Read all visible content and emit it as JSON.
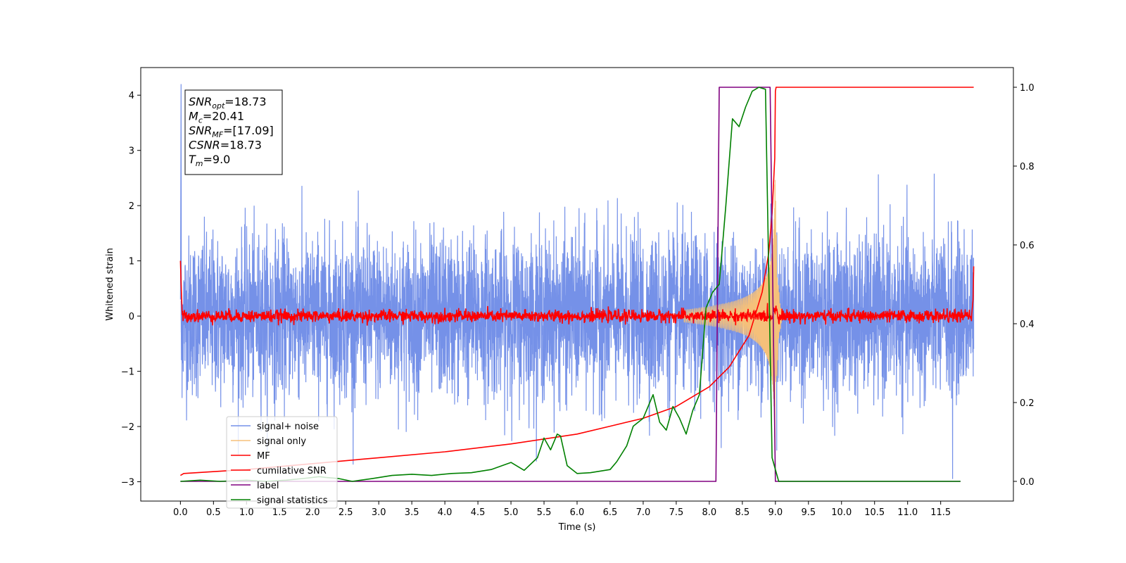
{
  "chart_data": {
    "type": "line",
    "xlabel": "Time (s)",
    "ylabel": "Whitened strain",
    "x_range": [
      -0.6,
      12.6
    ],
    "x_ticks": [
      "0.0",
      "0.5",
      "1.0",
      "1.5",
      "2.0",
      "2.5",
      "3.0",
      "3.5",
      "4.0",
      "4.5",
      "5.0",
      "5.5",
      "6.0",
      "6.5",
      "7.0",
      "7.5",
      "8.0",
      "8.5",
      "9.0",
      "9.5",
      "10.0",
      "10.5",
      "11.0",
      "11.5"
    ],
    "y_left_range": [
      -3.35,
      4.5
    ],
    "y_left_ticks": [
      "−3",
      "−2",
      "−1",
      "0",
      "1",
      "2",
      "3",
      "4"
    ],
    "y_right_range": [
      -0.05,
      1.05
    ],
    "y_right_ticks": [
      "0.0",
      "0.2",
      "0.4",
      "0.6",
      "0.8",
      "1.0"
    ],
    "grid": false,
    "legend_placement": "lower-left",
    "annotation": [
      {
        "base": "SNR",
        "sub": "opt",
        "value": "=18.73"
      },
      {
        "base": "M",
        "sub": "c",
        "value": "=20.41"
      },
      {
        "base": "SNR",
        "sub": "MF",
        "value": "=[17.09]"
      },
      {
        "base": "CSNR",
        "sub": "",
        "value": "=18.73"
      },
      {
        "base": "T",
        "sub": "m",
        "value": "=9.0"
      }
    ],
    "series": [
      {
        "name": "signal+ noise",
        "color": "#7591e8",
        "axis": "left",
        "style": "noise",
        "description_values": {
          "x_start": 0.0,
          "x_end": 12.0,
          "typical_low": -1.6,
          "typical_high": 1.6,
          "max_spike": 4.2,
          "min_spike": -2.95
        }
      },
      {
        "name": "signal only",
        "color": "#f5c07a",
        "axis": "left",
        "style": "chirp",
        "description_values": {
          "x_start": 7.6,
          "merger_time": 9.0,
          "peak_amplitude": 2.5
        }
      },
      {
        "name": "MF",
        "color": "#ff0000",
        "axis": "left",
        "style": "mf_noise",
        "description_values": {
          "x_start": 0.0,
          "x_end": 12.0,
          "start_value": 1.0,
          "end_value": 0.9,
          "noise_level": 0.1
        }
      },
      {
        "name": "cumilative SNR",
        "color": "#ff0000",
        "axis": "right",
        "x": [
          0.0,
          0.05,
          1.0,
          2.0,
          3.0,
          4.0,
          5.0,
          6.0,
          6.5,
          7.0,
          7.5,
          8.0,
          8.3,
          8.6,
          8.8,
          8.9,
          8.95,
          8.99,
          9.0,
          9.01,
          12.0
        ],
        "y": [
          0.015,
          0.02,
          0.03,
          0.045,
          0.06,
          0.075,
          0.095,
          0.12,
          0.14,
          0.16,
          0.19,
          0.24,
          0.29,
          0.37,
          0.48,
          0.58,
          0.68,
          0.82,
          0.99,
          1.0,
          1.0
        ]
      },
      {
        "name": "label",
        "color": "#800080",
        "axis": "right",
        "x": [
          0.0,
          8.1,
          8.15,
          8.92,
          9.0,
          11.8
        ],
        "y": [
          0.0,
          0.0,
          1.0,
          1.0,
          0.0,
          0.0
        ]
      },
      {
        "name": "signal statistics",
        "color": "#008000",
        "axis": "right",
        "x": [
          0.0,
          0.3,
          0.6,
          1.0,
          1.3,
          1.6,
          1.9,
          2.1,
          2.2,
          2.4,
          2.6,
          2.9,
          3.2,
          3.5,
          3.8,
          4.1,
          4.4,
          4.7,
          5.0,
          5.2,
          5.4,
          5.5,
          5.6,
          5.7,
          5.75,
          5.85,
          6.0,
          6.2,
          6.5,
          6.6,
          6.75,
          6.85,
          7.0,
          7.15,
          7.25,
          7.35,
          7.45,
          7.55,
          7.65,
          7.75,
          7.85,
          7.95,
          8.05,
          8.15,
          8.25,
          8.35,
          8.45,
          8.55,
          8.65,
          8.75,
          8.85,
          8.95,
          9.05,
          9.3,
          11.8
        ],
        "y": [
          0.0,
          0.003,
          0.0,
          0.003,
          0.0,
          0.003,
          0.008,
          0.012,
          0.01,
          0.007,
          0.0,
          0.007,
          0.015,
          0.018,
          0.015,
          0.02,
          0.022,
          0.03,
          0.048,
          0.028,
          0.06,
          0.11,
          0.08,
          0.12,
          0.115,
          0.04,
          0.02,
          0.022,
          0.03,
          0.05,
          0.09,
          0.14,
          0.16,
          0.22,
          0.15,
          0.13,
          0.19,
          0.16,
          0.12,
          0.18,
          0.22,
          0.44,
          0.48,
          0.5,
          0.7,
          0.92,
          0.9,
          0.95,
          0.99,
          1.0,
          0.995,
          0.06,
          0.0,
          0.0,
          0.0
        ]
      }
    ]
  }
}
